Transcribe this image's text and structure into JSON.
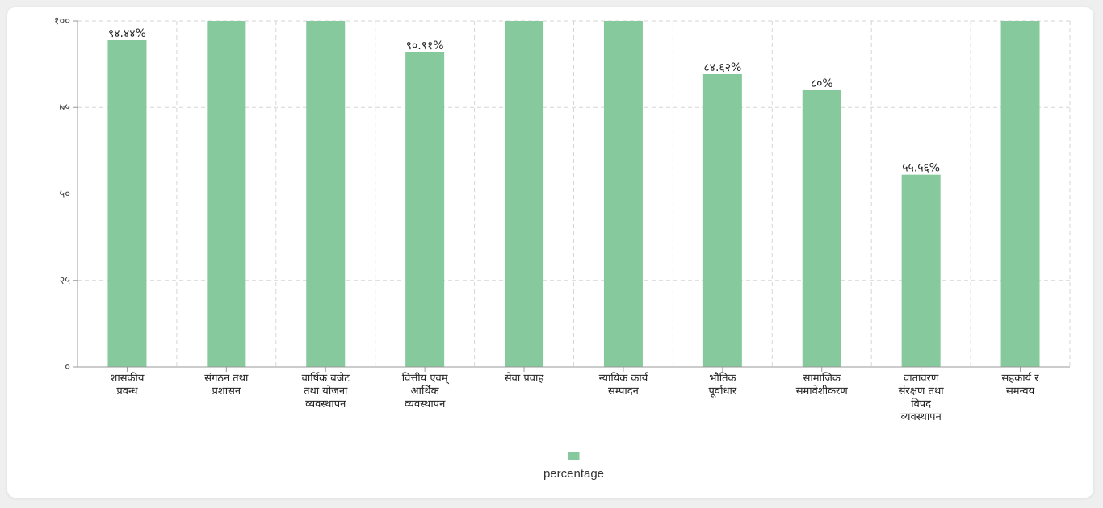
{
  "chart_data": {
    "type": "bar",
    "categories": [
      [
        "शासकीय",
        "प्रवन्ध"
      ],
      [
        "संगठन तथा",
        "प्रशासन"
      ],
      [
        "वार्षिक बजेट",
        "तथा योजना",
        "व्यवस्थापन"
      ],
      [
        "वित्तीय एवम्",
        "आर्थिक",
        "व्यवस्थापन"
      ],
      [
        "सेवा प्रवाह"
      ],
      [
        "न्यायिक कार्य",
        "सम्पादन"
      ],
      [
        "भौतिक",
        "पूर्वाधार"
      ],
      [
        "सामाजिक",
        "समावेशीकरण"
      ],
      [
        "वातावरण",
        "संरक्षण तथा",
        "विपद",
        "व्यवस्थापन"
      ],
      [
        "सहकार्य र",
        "समन्वय"
      ]
    ],
    "series": [
      {
        "name": "percentage",
        "values": [
          94.44,
          100,
          100,
          90.91,
          100,
          100,
          84.62,
          80,
          55.56,
          100
        ],
        "data_labels": [
          "९४.४४%",
          "",
          "",
          "९०.९१%",
          "",
          "",
          "८४.६२%",
          "८०%",
          "५५.५६%",
          ""
        ]
      }
    ],
    "yticks": [
      {
        "value": 0,
        "label": "०"
      },
      {
        "value": 25,
        "label": "२५"
      },
      {
        "value": 50,
        "label": "५०"
      },
      {
        "value": 75,
        "label": "७५"
      },
      {
        "value": 100,
        "label": "१००"
      }
    ],
    "ylim": [
      0,
      100
    ],
    "grid": true,
    "legend_position": "bottom",
    "bar_color": "#85c99c",
    "grid_color": "#d6d6d6",
    "axis_color": "#999999"
  }
}
